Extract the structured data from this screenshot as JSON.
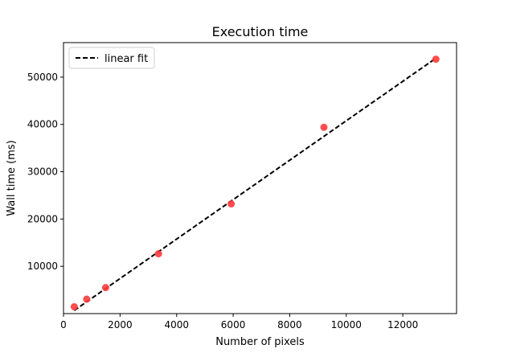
{
  "chart_data": {
    "type": "scatter",
    "title": "Execution time",
    "xlabel": "Number of pixels",
    "ylabel": "Wall time (ms)",
    "xlim": [
      0,
      13900
    ],
    "ylim": [
      0,
      57300
    ],
    "xticks": [
      0,
      2000,
      4000,
      6000,
      8000,
      10000,
      12000
    ],
    "yticks": [
      10000,
      20000,
      30000,
      40000,
      50000
    ],
    "grid": false,
    "legend_position": "top-left",
    "series": [
      {
        "kind": "scatter",
        "color": "#ff3b3b",
        "x": [
          380,
          820,
          1490,
          3360,
          5930,
          9210,
          13170
        ],
        "y": [
          1450,
          3050,
          5500,
          12650,
          23200,
          39400,
          53800
        ]
      },
      {
        "name": "linear fit",
        "kind": "line",
        "style": "dashed",
        "color": "#000000",
        "x": [
          380,
          13170
        ],
        "y": [
          660,
          54000
        ]
      }
    ]
  }
}
